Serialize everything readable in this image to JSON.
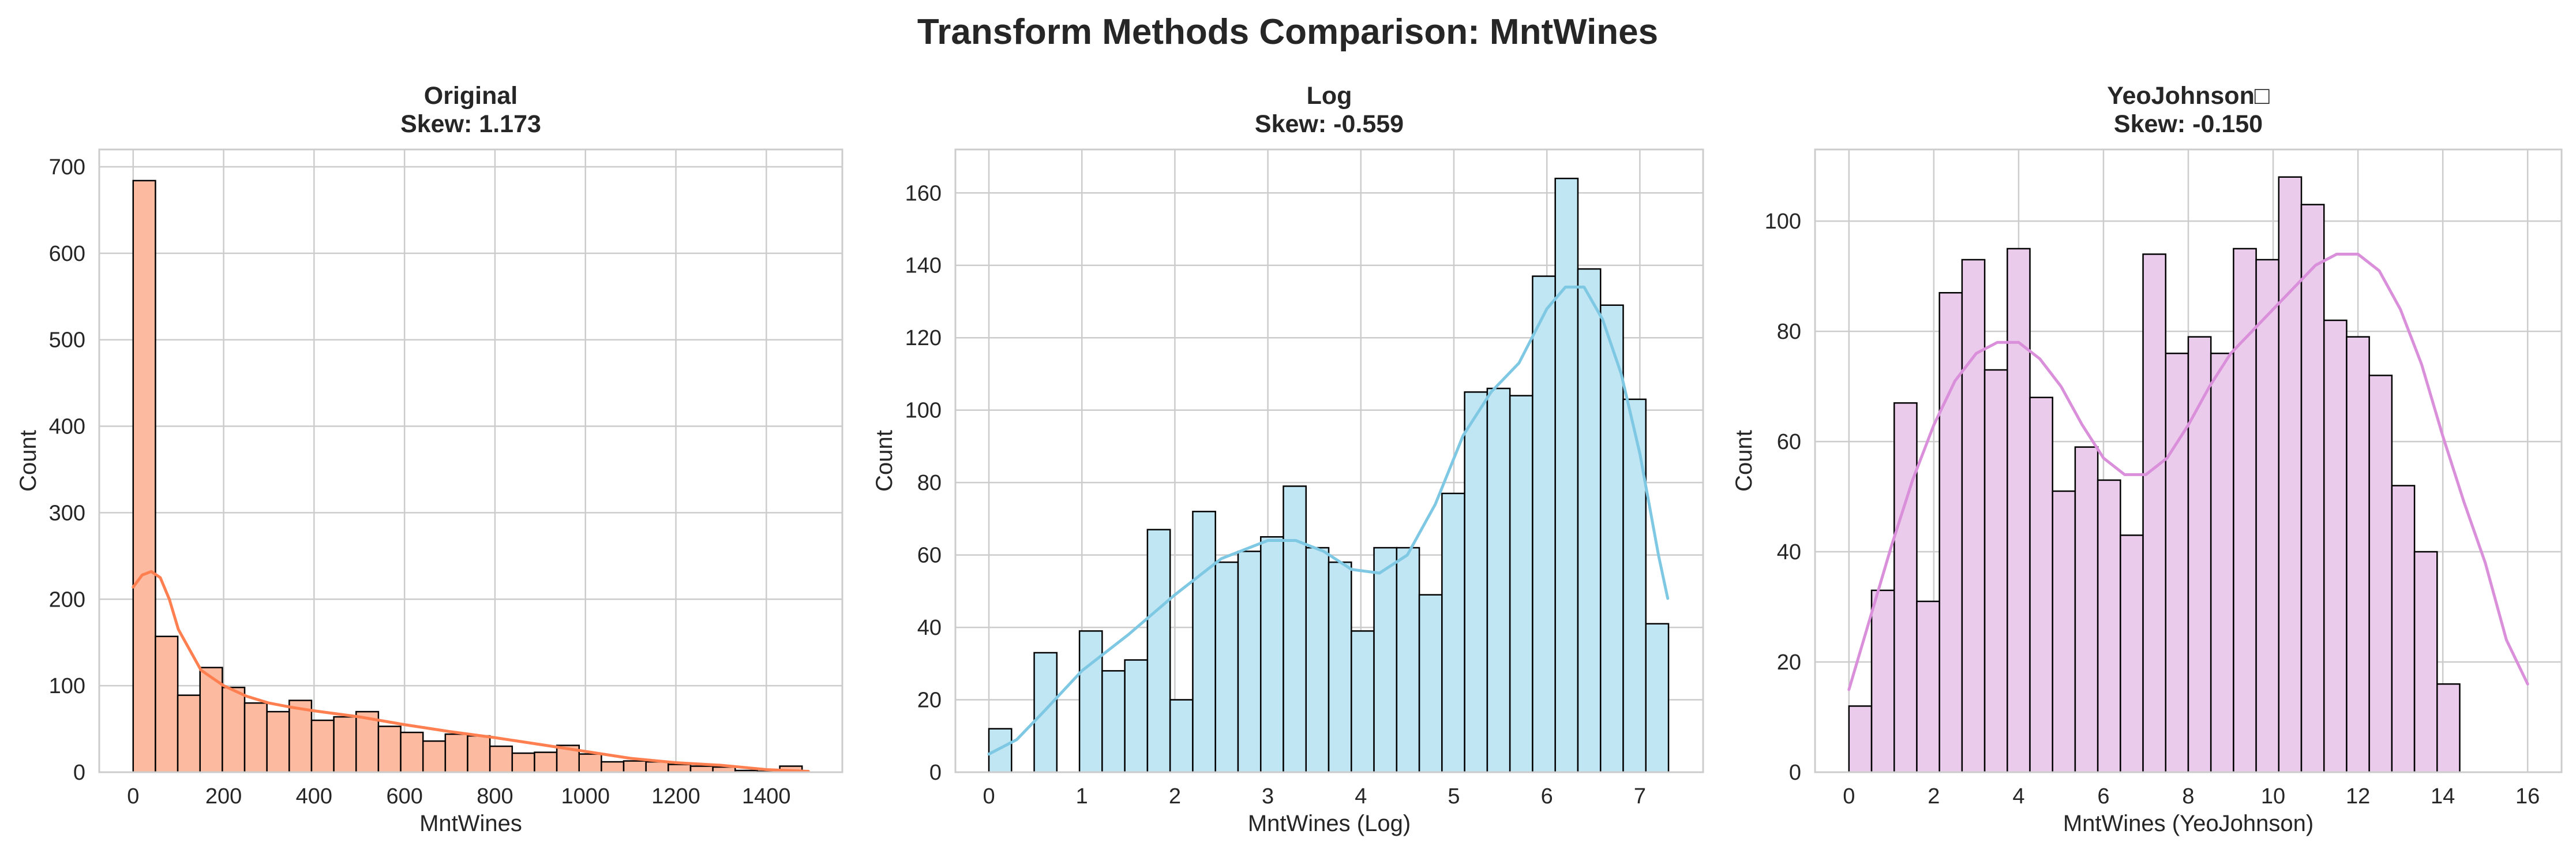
{
  "figure": {
    "suptitle": "Transform Methods Comparison: MntWines"
  },
  "chart_data": [
    {
      "type": "bar",
      "subtype": "histogram",
      "title_line1": "Original",
      "title_line2": "Skew: 1.173",
      "xlabel": "MntWines",
      "ylabel": "Count",
      "xlim": [
        -75,
        1568
      ],
      "ylim": [
        0,
        720
      ],
      "xticks": [
        0,
        200,
        400,
        600,
        800,
        1000,
        1200,
        1400
      ],
      "yticks": [
        0,
        100,
        200,
        300,
        400,
        500,
        600,
        700
      ],
      "bin_start": 0,
      "bin_width": 49.3,
      "values": [
        684,
        157,
        89,
        121,
        98,
        80,
        70,
        83,
        60,
        64,
        70,
        53,
        46,
        36,
        44,
        42,
        30,
        22,
        23,
        31,
        21,
        12,
        13,
        12,
        9,
        7,
        6,
        2,
        1,
        7
      ],
      "kde_x": [
        0,
        20,
        40,
        60,
        80,
        100,
        150,
        200,
        250,
        300,
        350,
        400,
        500,
        600,
        700,
        800,
        900,
        1000,
        1100,
        1200,
        1300,
        1400,
        1493
      ],
      "kde_y": [
        214,
        228,
        232,
        225,
        200,
        165,
        118,
        100,
        88,
        80,
        75,
        71,
        64,
        55,
        47,
        40,
        32,
        24,
        16,
        11,
        8,
        3,
        1
      ],
      "grid": true,
      "bar_color": "#FCBBA1",
      "line_color": "#FF7F50"
    },
    {
      "type": "bar",
      "subtype": "histogram",
      "title_line1": "Log",
      "title_line2": "Skew: -0.559",
      "xlabel": "MntWines (Log)",
      "ylabel": "Count",
      "xlim": [
        -0.36,
        7.68
      ],
      "ylim": [
        0,
        172
      ],
      "xticks": [
        0,
        1,
        2,
        3,
        4,
        5,
        6,
        7
      ],
      "yticks": [
        0,
        20,
        40,
        60,
        80,
        100,
        120,
        140,
        160
      ],
      "bin_start": 0,
      "bin_width": 0.2436,
      "values": [
        12,
        0,
        33,
        0,
        39,
        28,
        31,
        67,
        20,
        72,
        58,
        61,
        65,
        79,
        62,
        58,
        39,
        62,
        62,
        49,
        77,
        105,
        106,
        104,
        137,
        164,
        139,
        129,
        103,
        41
      ],
      "kde_x": [
        0,
        0.3,
        0.6,
        1.0,
        1.5,
        2.0,
        2.5,
        3.0,
        3.3,
        3.6,
        3.9,
        4.2,
        4.5,
        4.8,
        5.1,
        5.4,
        5.7,
        6.0,
        6.2,
        6.4,
        6.6,
        6.8,
        7.0,
        7.2,
        7.3
      ],
      "kde_y": [
        5,
        9,
        17,
        28,
        38,
        49,
        59,
        64,
        64,
        61,
        56,
        55,
        60,
        74,
        93,
        105,
        113,
        128,
        134,
        134,
        125,
        110,
        88,
        60,
        48
      ],
      "grid": true,
      "bar_color": "#C0E5F3",
      "line_color": "#7EC8E3"
    },
    {
      "type": "bar",
      "subtype": "histogram",
      "title_line1": "YeoJohnson□",
      "title_line2": "Skew: -0.150",
      "xlabel": "MntWines (YeoJohnson)",
      "ylabel": "Count",
      "xlim": [
        -0.8,
        16.8
      ],
      "ylim": [
        0,
        113
      ],
      "xticks": [
        0,
        2,
        4,
        6,
        8,
        10,
        12,
        14,
        16
      ],
      "yticks": [
        0,
        20,
        40,
        60,
        80,
        100
      ],
      "bin_start": 0,
      "bin_width": 0.5333,
      "values": [
        12,
        33,
        67,
        31,
        87,
        93,
        73,
        95,
        68,
        51,
        59,
        53,
        43,
        94,
        76,
        79,
        76,
        95,
        93,
        108,
        103,
        82,
        79,
        72,
        52,
        40,
        16
      ],
      "kde_x": [
        0,
        0.5,
        1,
        1.5,
        2,
        2.5,
        3,
        3.5,
        4,
        4.5,
        5,
        5.5,
        6,
        6.5,
        7,
        7.5,
        8,
        8.5,
        9,
        9.5,
        10,
        10.5,
        11,
        11.5,
        12,
        12.5,
        13,
        13.5,
        14,
        14.5,
        15,
        15.5,
        16
      ],
      "kde_y": [
        15,
        28,
        41,
        53,
        63,
        71,
        76,
        78,
        78,
        75,
        70,
        63,
        57,
        54,
        54,
        57,
        63,
        70,
        76,
        80,
        84,
        88,
        92,
        94,
        94,
        91,
        84,
        74,
        61,
        49,
        38,
        24,
        16
      ],
      "grid": true,
      "bar_color": "#EBCBEB",
      "line_color": "#DA8FDA"
    }
  ]
}
